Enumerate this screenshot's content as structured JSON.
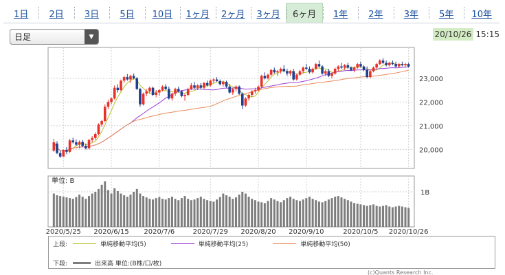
{
  "period_tabs": {
    "items": [
      {
        "label": "1日"
      },
      {
        "label": "2日"
      },
      {
        "label": "3日"
      },
      {
        "label": "5日"
      },
      {
        "label": "10日"
      },
      {
        "label": "1ヶ月"
      },
      {
        "label": "2ヶ月"
      },
      {
        "label": "3ヶ月"
      },
      {
        "label": "6ヶ月"
      },
      {
        "label": "1年"
      },
      {
        "label": "2年"
      },
      {
        "label": "3年"
      },
      {
        "label": "5年"
      },
      {
        "label": "10年"
      }
    ],
    "active": "6ヶ月"
  },
  "interval_select": {
    "value": "日足"
  },
  "timestamp": {
    "date": "20/10/26",
    "time": "15:15"
  },
  "legend": {
    "upper_label": "上段:",
    "lower_label": "下段:",
    "ma5": "単純移動平均(5)",
    "ma25": "単純移動平均(25)",
    "ma50": "単純移動平均(50)",
    "volume": "出来高 単位:(B株/口/枚)"
  },
  "copyright": "(c)Quants Research Inc.",
  "colors": {
    "up": "#e8312a",
    "down": "#1f3f8f",
    "ma5": "#b5c22b",
    "ma25": "#9b3fd4",
    "ma50": "#e98a58",
    "volume": "#7d7d7d",
    "active_tab": "#d6ecd6"
  },
  "chart_data": {
    "type": "candlestick",
    "price_axis": {
      "ticks": [
        "23,000",
        "22,000",
        "21,000",
        "20,000"
      ],
      "tick_values": [
        23000,
        22000,
        21000,
        20000
      ],
      "ylim": [
        19200,
        24300
      ]
    },
    "volume_axis": {
      "unit_label": "単位: B",
      "ticks": [
        "1B"
      ],
      "tick_values": [
        1
      ],
      "ylim": [
        0,
        1.45
      ]
    },
    "x_labels": [
      "2020/5/25",
      "2020/6/15",
      "2020/7/6",
      "2020/7/29",
      "2020/8/20",
      "2020/9/10",
      "2020/10/5",
      "2020/10/26"
    ],
    "x_label_index": [
      3,
      18,
      33,
      49,
      64,
      79,
      96,
      111
    ],
    "ohlc": [
      [
        19950,
        20450,
        19900,
        20300
      ],
      [
        20250,
        20350,
        19800,
        19850
      ],
      [
        19850,
        19950,
        19650,
        19700
      ],
      [
        19700,
        20000,
        19700,
        19980
      ],
      [
        19980,
        20100,
        19800,
        19900
      ],
      [
        19900,
        20450,
        19850,
        20380
      ],
      [
        20380,
        20500,
        20250,
        20300
      ],
      [
        20300,
        20420,
        20150,
        20200
      ],
      [
        20200,
        20380,
        20050,
        20320
      ],
      [
        20320,
        20400,
        20100,
        20150
      ],
      [
        20150,
        20250,
        20000,
        20050
      ],
      [
        20050,
        20450,
        20000,
        20400
      ],
      [
        20400,
        20560,
        20300,
        20480
      ],
      [
        20480,
        20720,
        20400,
        20650
      ],
      [
        20650,
        21100,
        20600,
        21050
      ],
      [
        21050,
        21250,
        20950,
        21200
      ],
      [
        21200,
        21900,
        21150,
        21800
      ],
      [
        21800,
        22100,
        21700,
        22000
      ],
      [
        22000,
        22200,
        21900,
        22150
      ],
      [
        22150,
        22700,
        22100,
        22600
      ],
      [
        22600,
        22750,
        22400,
        22500
      ],
      [
        22500,
        22950,
        22450,
        22900
      ],
      [
        22900,
        23100,
        22800,
        23050
      ],
      [
        23050,
        23180,
        22900,
        22950
      ],
      [
        22950,
        23150,
        22800,
        23100
      ],
      [
        23100,
        23200,
        22950,
        23000
      ],
      [
        23000,
        23050,
        22500,
        22550
      ],
      [
        22550,
        22600,
        21800,
        21900
      ],
      [
        21900,
        22400,
        21850,
        22350
      ],
      [
        22350,
        22550,
        22250,
        22450
      ],
      [
        22450,
        22650,
        22350,
        22600
      ],
      [
        22600,
        22650,
        22250,
        22300
      ],
      [
        22300,
        22500,
        22200,
        22400
      ],
      [
        22400,
        22550,
        22250,
        22500
      ],
      [
        22500,
        22700,
        22450,
        22650
      ],
      [
        22650,
        22750,
        22500,
        22550
      ],
      [
        22550,
        22650,
        22100,
        22150
      ],
      [
        22150,
        22400,
        22050,
        22350
      ],
      [
        22350,
        22600,
        22250,
        22550
      ],
      [
        22550,
        22650,
        22400,
        22450
      ],
      [
        22450,
        22500,
        22200,
        22250
      ],
      [
        22250,
        22350,
        22050,
        22300
      ],
      [
        22300,
        22600,
        22250,
        22550
      ],
      [
        22550,
        22800,
        22500,
        22700
      ],
      [
        22700,
        22850,
        22550,
        22600
      ],
      [
        22600,
        22750,
        22500,
        22700
      ],
      [
        22700,
        22800,
        22550,
        22600
      ],
      [
        22600,
        22850,
        22550,
        22800
      ],
      [
        22800,
        22900,
        22650,
        22700
      ],
      [
        22700,
        22950,
        22650,
        22900
      ],
      [
        22900,
        23000,
        22800,
        22950
      ],
      [
        22950,
        23050,
        22850,
        22880
      ],
      [
        22880,
        22950,
        22700,
        22750
      ],
      [
        22750,
        22900,
        22650,
        22850
      ],
      [
        22850,
        22900,
        22600,
        22650
      ],
      [
        22650,
        22750,
        22350,
        22400
      ],
      [
        22400,
        22600,
        22300,
        22550
      ],
      [
        22550,
        22700,
        22450,
        22650
      ],
      [
        22650,
        22700,
        22300,
        22350
      ],
      [
        22350,
        22400,
        21700,
        21850
      ],
      [
        21850,
        22200,
        21800,
        22150
      ],
      [
        22150,
        22350,
        22050,
        22300
      ],
      [
        22300,
        22500,
        22200,
        22450
      ],
      [
        22450,
        22600,
        22350,
        22500
      ],
      [
        22500,
        22700,
        22450,
        22650
      ],
      [
        22650,
        23150,
        22600,
        23100
      ],
      [
        23100,
        23250,
        22950,
        23000
      ],
      [
        23000,
        23200,
        22950,
        23150
      ],
      [
        23150,
        23400,
        23100,
        23350
      ],
      [
        23350,
        23450,
        23200,
        23250
      ],
      [
        23250,
        23350,
        23100,
        23300
      ],
      [
        23300,
        23450,
        23200,
        23400
      ],
      [
        23400,
        23550,
        23250,
        23300
      ],
      [
        23300,
        23400,
        23100,
        23200
      ],
      [
        23200,
        23350,
        23100,
        23300
      ],
      [
        23300,
        23400,
        22900,
        22950
      ],
      [
        22950,
        23200,
        22900,
        23150
      ],
      [
        23150,
        23350,
        23100,
        23300
      ],
      [
        23300,
        23500,
        23200,
        23450
      ],
      [
        23450,
        23600,
        23350,
        23400
      ],
      [
        23400,
        23500,
        23200,
        23250
      ],
      [
        23250,
        23450,
        23200,
        23400
      ],
      [
        23400,
        23650,
        23350,
        23600
      ],
      [
        23600,
        23750,
        23450,
        23500
      ],
      [
        23500,
        23550,
        23150,
        23200
      ],
      [
        23200,
        23350,
        23100,
        23300
      ],
      [
        23300,
        23400,
        23050,
        23100
      ],
      [
        23100,
        23250,
        23000,
        23200
      ],
      [
        23200,
        23450,
        23150,
        23400
      ],
      [
        23400,
        23550,
        23300,
        23500
      ],
      [
        23500,
        23650,
        23400,
        23450
      ],
      [
        23450,
        23600,
        23350,
        23550
      ],
      [
        23550,
        23650,
        23400,
        23450
      ],
      [
        23450,
        23500,
        23300,
        23350
      ],
      [
        23350,
        23500,
        23250,
        23450
      ],
      [
        23450,
        23650,
        23400,
        23600
      ],
      [
        23600,
        23700,
        23450,
        23500
      ],
      [
        23500,
        23550,
        23300,
        23350
      ],
      [
        23350,
        23500,
        23000,
        23050
      ],
      [
        23050,
        23350,
        23000,
        23300
      ],
      [
        23300,
        23500,
        23250,
        23450
      ],
      [
        23450,
        23650,
        23400,
        23600
      ],
      [
        23600,
        23800,
        23550,
        23750
      ],
      [
        23750,
        23850,
        23600,
        23650
      ],
      [
        23650,
        23750,
        23500,
        23550
      ],
      [
        23550,
        23700,
        23500,
        23650
      ],
      [
        23650,
        23750,
        23550,
        23600
      ],
      [
        23600,
        23700,
        23450,
        23500
      ],
      [
        23500,
        23650,
        23450,
        23600
      ],
      [
        23600,
        23700,
        23500,
        23550
      ],
      [
        23550,
        23650,
        23450,
        23600
      ],
      [
        23600,
        23650,
        23450,
        23500
      ]
    ],
    "volume": [
      0.95,
      0.9,
      0.88,
      0.86,
      0.84,
      0.82,
      0.8,
      0.85,
      0.92,
      0.86,
      0.8,
      0.88,
      0.95,
      1.0,
      1.08,
      1.2,
      1.3,
      1.05,
      0.95,
      1.1,
      1.02,
      0.95,
      0.9,
      0.86,
      0.92,
      1.0,
      1.08,
      0.95,
      0.88,
      0.84,
      0.8,
      0.78,
      0.82,
      0.85,
      0.8,
      0.78,
      0.82,
      0.86,
      0.8,
      0.76,
      0.82,
      0.88,
      0.8,
      0.76,
      0.78,
      0.82,
      0.86,
      0.8,
      0.76,
      0.74,
      0.72,
      0.78,
      0.85,
      0.95,
      0.9,
      0.86,
      0.8,
      0.84,
      0.92,
      1.0,
      0.95,
      0.86,
      0.8,
      0.76,
      0.72,
      0.7,
      0.68,
      0.74,
      0.82,
      0.78,
      0.74,
      0.7,
      0.76,
      0.82,
      0.86,
      0.8,
      0.76,
      0.74,
      0.78,
      0.82,
      0.86,
      0.8,
      0.76,
      0.72,
      0.7,
      0.74,
      0.78,
      0.82,
      0.86,
      0.88,
      0.84,
      0.8,
      0.76,
      0.72,
      0.68,
      0.66,
      0.64,
      0.62,
      0.6,
      0.62,
      0.64,
      0.6,
      0.58,
      0.6,
      0.62,
      0.58,
      0.56,
      0.58,
      0.6,
      0.58,
      0.56,
      0.54
    ]
  }
}
